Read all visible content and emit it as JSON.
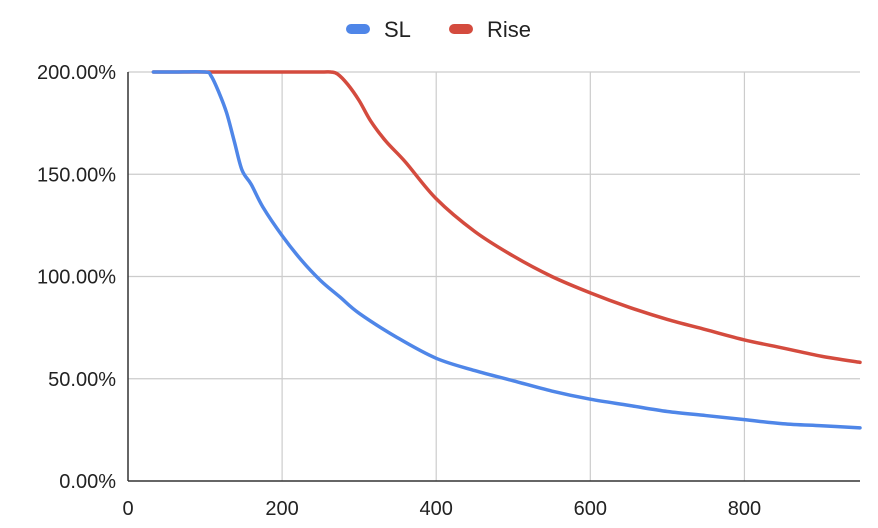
{
  "chart_data": {
    "type": "line",
    "title": "",
    "xlabel": "",
    "ylabel": "",
    "xlim": [
      0,
      950
    ],
    "ylim": [
      0,
      2
    ],
    "grid": true,
    "legend_position": "top-center",
    "x_ticks": [
      {
        "value": 0,
        "label": "0"
      },
      {
        "value": 200,
        "label": "200"
      },
      {
        "value": 400,
        "label": "400"
      },
      {
        "value": 600,
        "label": "600"
      },
      {
        "value": 800,
        "label": "800"
      }
    ],
    "y_ticks": [
      {
        "value": 0,
        "label": "0.00%"
      },
      {
        "value": 0.5,
        "label": "50.00%"
      },
      {
        "value": 1,
        "label": "100.00%"
      },
      {
        "value": 1.5,
        "label": "150.00%"
      },
      {
        "value": 2,
        "label": "200.00%"
      }
    ],
    "series": [
      {
        "name": "SL",
        "color": "#4f86e8",
        "points": [
          [
            33,
            2.0
          ],
          [
            60,
            2.0
          ],
          [
            100,
            2.0
          ],
          [
            108,
            1.98
          ],
          [
            118,
            1.9
          ],
          [
            128,
            1.8
          ],
          [
            138,
            1.66
          ],
          [
            148,
            1.52
          ],
          [
            160,
            1.45
          ],
          [
            175,
            1.34
          ],
          [
            200,
            1.2
          ],
          [
            225,
            1.08
          ],
          [
            250,
            0.98
          ],
          [
            275,
            0.9
          ],
          [
            300,
            0.82
          ],
          [
            350,
            0.7
          ],
          [
            400,
            0.6
          ],
          [
            450,
            0.54
          ],
          [
            500,
            0.49
          ],
          [
            550,
            0.44
          ],
          [
            600,
            0.4
          ],
          [
            650,
            0.37
          ],
          [
            700,
            0.34
          ],
          [
            750,
            0.32
          ],
          [
            800,
            0.3
          ],
          [
            850,
            0.28
          ],
          [
            900,
            0.27
          ],
          [
            950,
            0.26
          ]
        ]
      },
      {
        "name": "Rise",
        "color": "#d44b3e",
        "points": [
          [
            33,
            2.0
          ],
          [
            100,
            2.0
          ],
          [
            200,
            2.0
          ],
          [
            250,
            2.0
          ],
          [
            263,
            2.0
          ],
          [
            272,
            1.99
          ],
          [
            285,
            1.94
          ],
          [
            300,
            1.86
          ],
          [
            315,
            1.76
          ],
          [
            335,
            1.66
          ],
          [
            360,
            1.56
          ],
          [
            400,
            1.38
          ],
          [
            450,
            1.22
          ],
          [
            500,
            1.1
          ],
          [
            550,
            1.0
          ],
          [
            600,
            0.92
          ],
          [
            650,
            0.85
          ],
          [
            700,
            0.79
          ],
          [
            750,
            0.74
          ],
          [
            800,
            0.69
          ],
          [
            850,
            0.65
          ],
          [
            900,
            0.61
          ],
          [
            950,
            0.58
          ]
        ]
      }
    ]
  }
}
